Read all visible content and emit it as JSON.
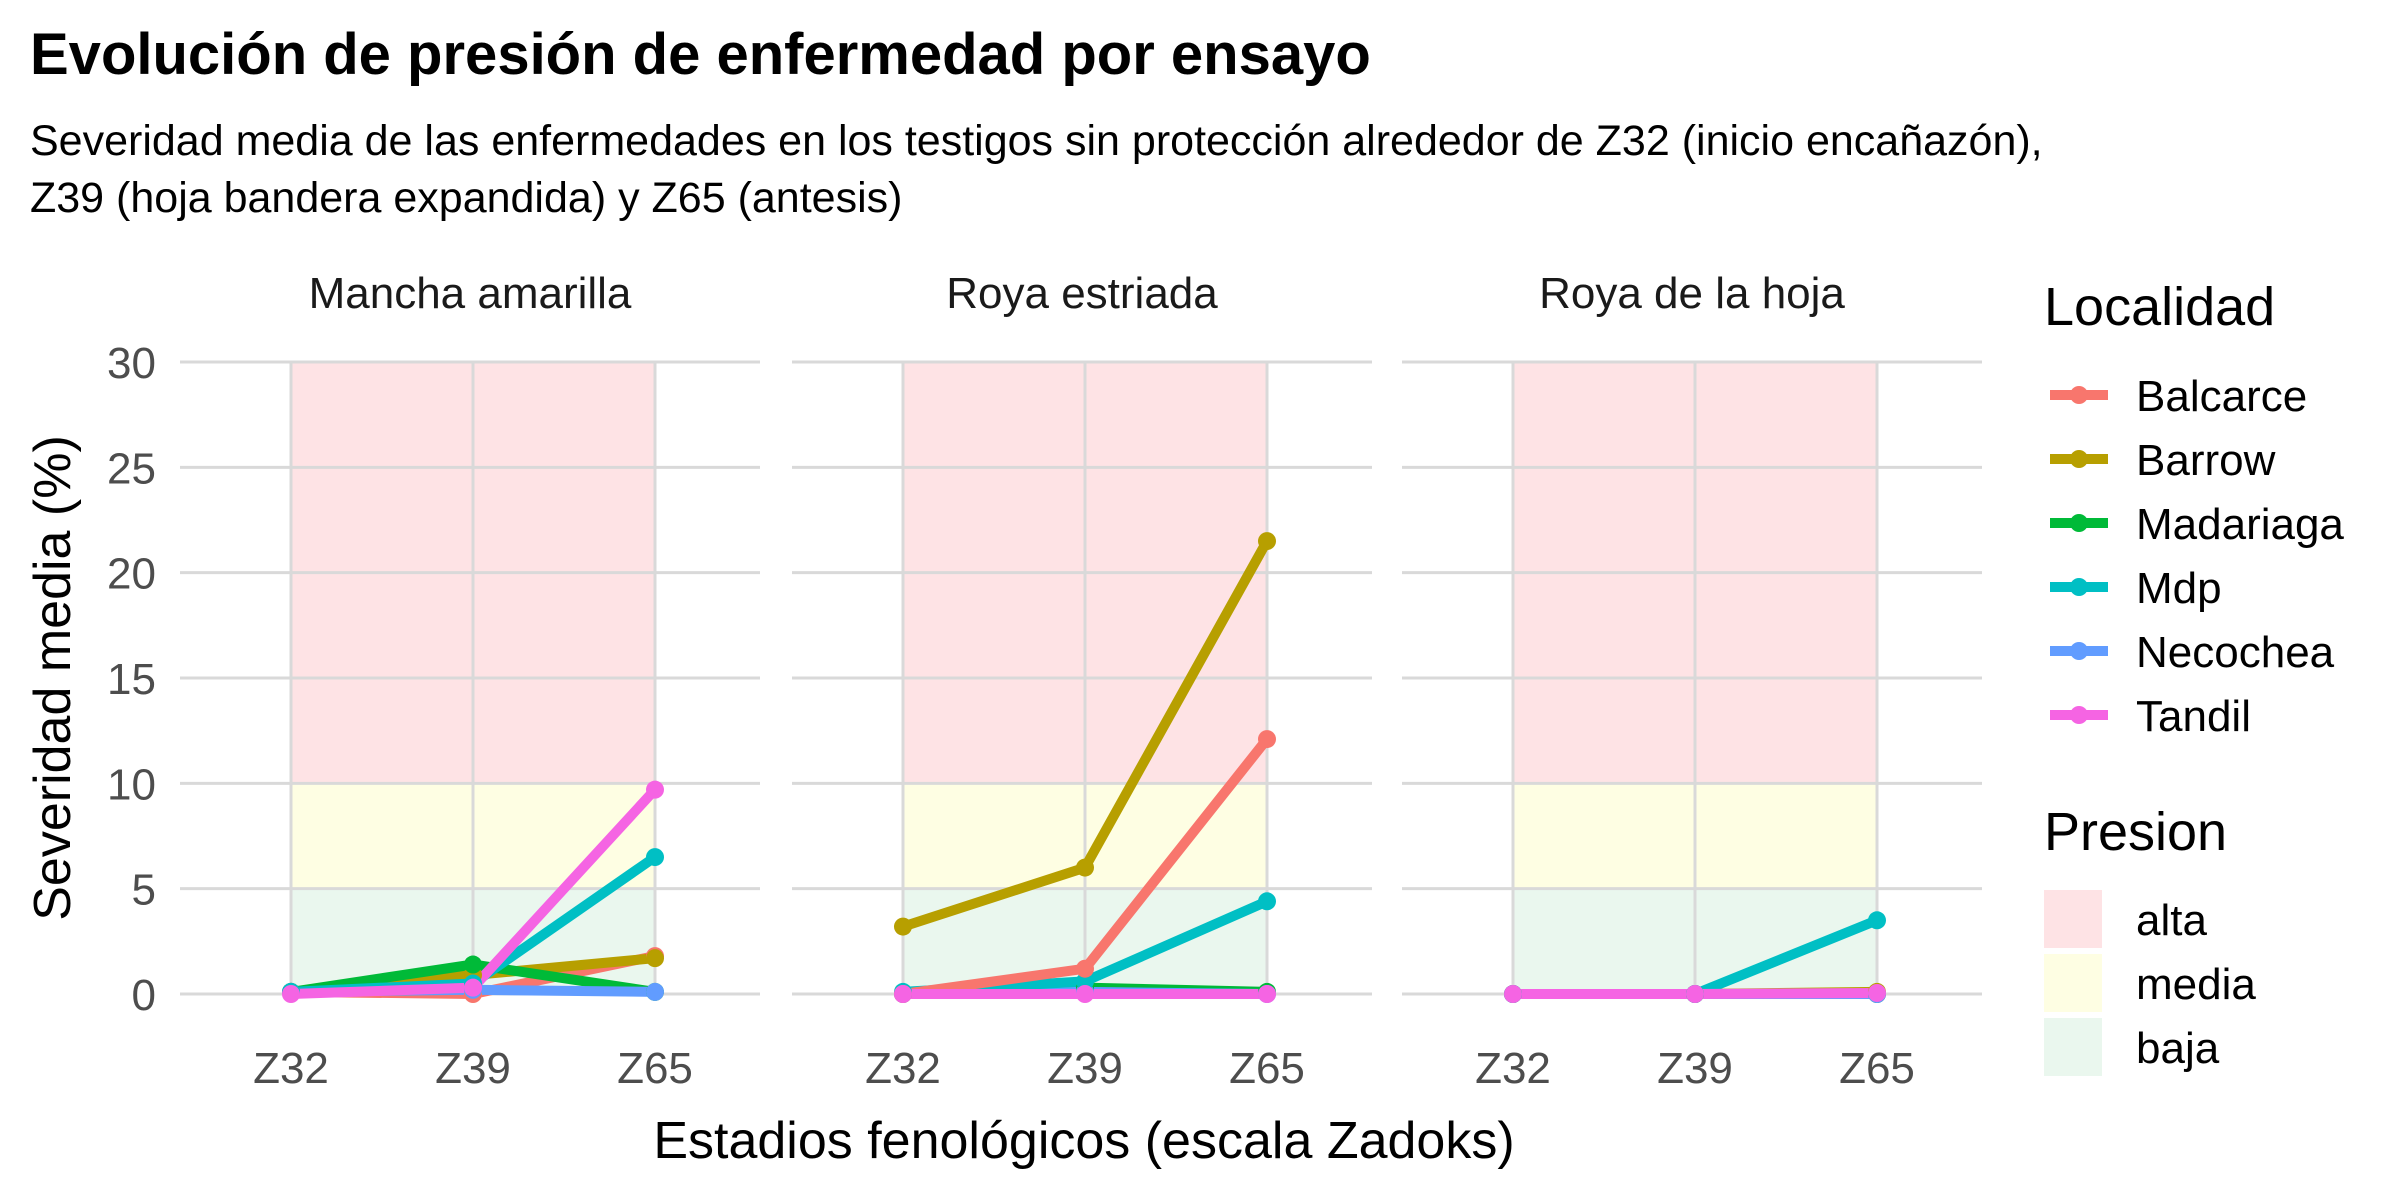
{
  "chart_data": {
    "type": "line",
    "title": "Evolución de presión de enfermedad por ensayo",
    "subtitle_lines": [
      "Severidad media de las  enfermedades en los testigos sin protección alrededor de Z32 (inicio encañazón),",
      "Z39 (hoja bandera expandida) y Z65 (antesis)"
    ],
    "xlabel": "Estadios fenológicos (escala Zadoks)",
    "ylabel": "Severidad media (%)",
    "x": [
      "Z32",
      "Z39",
      "Z65"
    ],
    "ylim": [
      0,
      30
    ],
    "yticks": [
      0,
      5,
      10,
      15,
      20,
      25,
      30
    ],
    "grid": true,
    "bands": [
      {
        "name": "baja",
        "from": 0,
        "to": 5,
        "color": "#eaf7ee"
      },
      {
        "name": "media",
        "from": 5,
        "to": 10,
        "color": "#fefee3"
      },
      {
        "name": "alta",
        "from": 10,
        "to": 30,
        "color": "#fee3e5"
      }
    ],
    "legend_localidad": {
      "title": "Localidad",
      "entries": [
        {
          "name": "Balcarce",
          "color": "#f8766d"
        },
        {
          "name": "Barrow",
          "color": "#b79f00"
        },
        {
          "name": "Madariaga",
          "color": "#00ba38"
        },
        {
          "name": "Mdp",
          "color": "#00bfc4"
        },
        {
          "name": "Necochea",
          "color": "#619cff"
        },
        {
          "name": "Tandil",
          "color": "#f564e3"
        }
      ]
    },
    "legend_presion": {
      "title": "Presion",
      "entries": [
        {
          "name": "alta",
          "color": "#fee3e5"
        },
        {
          "name": "media",
          "color": "#fefee3"
        },
        {
          "name": "baja",
          "color": "#eaf7ee"
        }
      ]
    },
    "panels": [
      {
        "name": "Mancha amarilla",
        "series": [
          {
            "name": "Balcarce",
            "values": [
              0.1,
              0.0,
              1.8
            ]
          },
          {
            "name": "Barrow",
            "values": [
              0.1,
              0.9,
              1.7
            ]
          },
          {
            "name": "Madariaga",
            "values": [
              0.1,
              1.4,
              0.1
            ]
          },
          {
            "name": "Necochea",
            "values": [
              0.1,
              0.2,
              0.1
            ]
          },
          {
            "name": "Mdp",
            "values": [
              0.1,
              0.5,
              6.5
            ]
          },
          {
            "name": "Tandil",
            "values": [
              0.0,
              0.3,
              9.7
            ]
          }
        ]
      },
      {
        "name": "Roya estriada",
        "series": [
          {
            "name": "Madariaga",
            "values": [
              0.0,
              0.3,
              0.1
            ]
          },
          {
            "name": "Necochea",
            "values": [
              0.0,
              0.1,
              0.0
            ]
          },
          {
            "name": "Mdp",
            "values": [
              0.1,
              0.6,
              4.4
            ]
          },
          {
            "name": "Balcarce",
            "values": [
              0.0,
              1.2,
              12.1
            ]
          },
          {
            "name": "Barrow",
            "values": [
              3.2,
              6.0,
              21.5
            ]
          },
          {
            "name": "Tandil",
            "values": [
              0.0,
              0.0,
              0.0
            ]
          }
        ]
      },
      {
        "name": "Roya de la hoja",
        "series": [
          {
            "name": "Balcarce",
            "values": [
              0.0,
              0.0,
              0.0
            ]
          },
          {
            "name": "Barrow",
            "values": [
              0.0,
              0.0,
              0.1
            ]
          },
          {
            "name": "Madariaga",
            "values": [
              0.0,
              0.0,
              0.0
            ]
          },
          {
            "name": "Necochea",
            "values": [
              0.0,
              0.0,
              0.0
            ]
          },
          {
            "name": "Mdp",
            "values": [
              0.0,
              0.0,
              3.5
            ]
          },
          {
            "name": "Tandil",
            "values": [
              0.0,
              0.0,
              0.05
            ]
          }
        ]
      }
    ]
  }
}
